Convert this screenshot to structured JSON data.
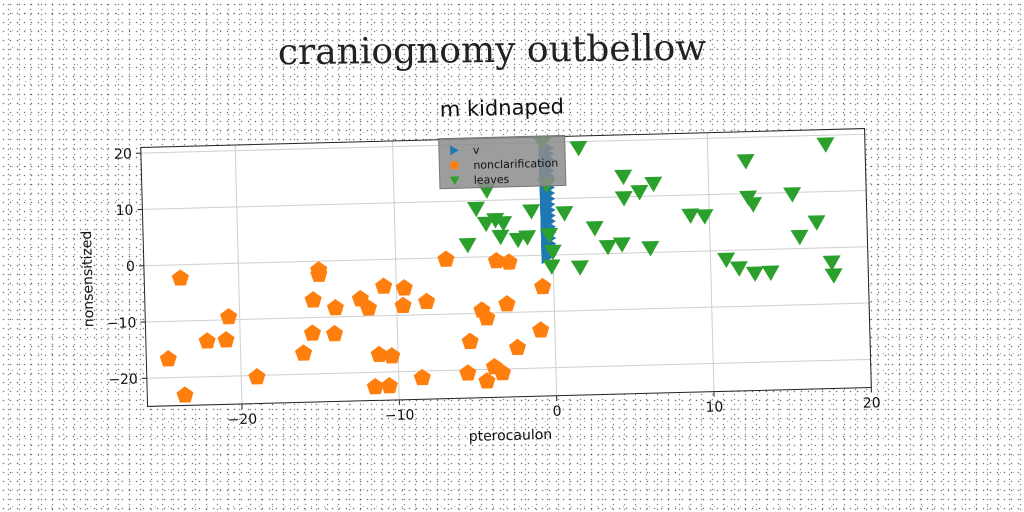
{
  "figure": {
    "suptitle": "craniognomy outbellow"
  },
  "chart_data": {
    "type": "scatter",
    "title": "m kidnaped",
    "xlabel": "pterocaulon",
    "ylabel": "nonsensitized",
    "xlim": [
      -26,
      20
    ],
    "ylim": [
      -25,
      21
    ],
    "xticks": [
      -20,
      -10,
      0,
      10,
      20
    ],
    "yticks": [
      -20,
      -10,
      0,
      10,
      20
    ],
    "grid": true,
    "legend_placement": "upper-center",
    "series": [
      {
        "name": "v",
        "marker": "triangle-right",
        "color": "#1f77b4",
        "points": [
          {
            "x": -0.3,
            "y": 19
          },
          {
            "x": -0.3,
            "y": 18
          },
          {
            "x": -0.3,
            "y": 17
          },
          {
            "x": -0.3,
            "y": 16
          },
          {
            "x": -0.3,
            "y": 15
          },
          {
            "x": -0.3,
            "y": 14
          },
          {
            "x": -0.3,
            "y": 13
          },
          {
            "x": -0.3,
            "y": 12
          },
          {
            "x": -0.3,
            "y": 11
          },
          {
            "x": -0.3,
            "y": 10
          },
          {
            "x": -0.3,
            "y": 9
          },
          {
            "x": -0.3,
            "y": 8
          },
          {
            "x": -0.3,
            "y": 7
          },
          {
            "x": -0.3,
            "y": 6
          },
          {
            "x": -0.3,
            "y": 5
          },
          {
            "x": -0.3,
            "y": 4
          },
          {
            "x": -0.3,
            "y": 3
          },
          {
            "x": -0.3,
            "y": 2
          },
          {
            "x": -0.3,
            "y": 1
          },
          {
            "x": -0.3,
            "y": 0
          }
        ]
      },
      {
        "name": "nonclarification",
        "marker": "pentagon",
        "color": "#ff7f0e",
        "points": [
          {
            "x": -23.7,
            "y": -2.4
          },
          {
            "x": -24.6,
            "y": -16.7
          },
          {
            "x": -23.6,
            "y": -23.2
          },
          {
            "x": -22.1,
            "y": -13.7
          },
          {
            "x": -20.9,
            "y": -13.6
          },
          {
            "x": -20.7,
            "y": -9.5
          },
          {
            "x": -19.0,
            "y": -20.3
          },
          {
            "x": -16.0,
            "y": -16.3
          },
          {
            "x": -15.4,
            "y": -12.8
          },
          {
            "x": -15.3,
            "y": -6.9
          },
          {
            "x": -14.9,
            "y": -2.4
          },
          {
            "x": -14.9,
            "y": -1.6
          },
          {
            "x": -14.0,
            "y": -13.0
          },
          {
            "x": -13.9,
            "y": -8.4
          },
          {
            "x": -12.3,
            "y": -6.9
          },
          {
            "x": -11.8,
            "y": -8.6
          },
          {
            "x": -11.5,
            "y": -22.6
          },
          {
            "x": -11.2,
            "y": -16.9
          },
          {
            "x": -10.8,
            "y": -4.8
          },
          {
            "x": -10.6,
            "y": -22.5
          },
          {
            "x": -10.4,
            "y": -17.2
          },
          {
            "x": -9.6,
            "y": -8.3
          },
          {
            "x": -9.5,
            "y": -5.2
          },
          {
            "x": -8.5,
            "y": -21.2
          },
          {
            "x": -8.1,
            "y": -7.7
          },
          {
            "x": -6.8,
            "y": -0.3
          },
          {
            "x": -5.4,
            "y": -15.0
          },
          {
            "x": -5.6,
            "y": -20.6
          },
          {
            "x": -4.6,
            "y": -9.5
          },
          {
            "x": -4.3,
            "y": -10.9
          },
          {
            "x": -4.4,
            "y": -22.1
          },
          {
            "x": -3.9,
            "y": -19.6
          },
          {
            "x": -3.6,
            "y": -0.8
          },
          {
            "x": -3.4,
            "y": -20.7
          },
          {
            "x": -3.0,
            "y": -8.5
          },
          {
            "x": -2.8,
            "y": -1.1
          },
          {
            "x": -2.4,
            "y": -16.3
          },
          {
            "x": -0.9,
            "y": -13.3
          },
          {
            "x": -0.7,
            "y": -5.6
          }
        ]
      },
      {
        "name": "leaves",
        "marker": "triangle-down",
        "color": "#2ca02c",
        "points": [
          {
            "x": -5.4,
            "y": 2.2
          },
          {
            "x": -4.8,
            "y": 8.6
          },
          {
            "x": -4.2,
            "y": 5.9
          },
          {
            "x": -4.1,
            "y": 11.8
          },
          {
            "x": -3.6,
            "y": 6.5
          },
          {
            "x": -3.3,
            "y": 3.5
          },
          {
            "x": -3.1,
            "y": 5.9
          },
          {
            "x": -2.2,
            "y": 2.9
          },
          {
            "x": -1.6,
            "y": 3.3
          },
          {
            "x": -1.3,
            "y": 7.9
          },
          {
            "x": -0.5,
            "y": 19.9
          },
          {
            "x": -0.3,
            "y": 12.5
          },
          {
            "x": -0.2,
            "y": 3.6
          },
          {
            "x": -0.1,
            "y": -2.0
          },
          {
            "x": 0.0,
            "y": 0.6
          },
          {
            "x": 0.8,
            "y": 7.4
          },
          {
            "x": 1.7,
            "y": -2.3
          },
          {
            "x": 1.8,
            "y": 18.9
          },
          {
            "x": 2.7,
            "y": 4.6
          },
          {
            "x": 3.5,
            "y": 1.2
          },
          {
            "x": 4.4,
            "y": 1.6
          },
          {
            "x": 4.6,
            "y": 13.6
          },
          {
            "x": 4.6,
            "y": 9.8
          },
          {
            "x": 5.6,
            "y": 10.8
          },
          {
            "x": 6.2,
            "y": 0.8
          },
          {
            "x": 6.5,
            "y": 12.2
          },
          {
            "x": 8.8,
            "y": 6.4
          },
          {
            "x": 9.7,
            "y": 6.2
          },
          {
            "x": 11.0,
            "y": -1.6
          },
          {
            "x": 11.8,
            "y": -3.2
          },
          {
            "x": 12.4,
            "y": 15.8
          },
          {
            "x": 12.5,
            "y": 9.3
          },
          {
            "x": 12.8,
            "y": 8.1
          },
          {
            "x": 12.8,
            "y": -4.2
          },
          {
            "x": 13.8,
            "y": -4.1
          },
          {
            "x": 15.3,
            "y": 9.7
          },
          {
            "x": 15.7,
            "y": 2.1
          },
          {
            "x": 16.8,
            "y": 4.6
          },
          {
            "x": 17.5,
            "y": 18.4
          },
          {
            "x": 17.7,
            "y": -2.6
          },
          {
            "x": 17.8,
            "y": -4.9
          }
        ]
      }
    ]
  }
}
